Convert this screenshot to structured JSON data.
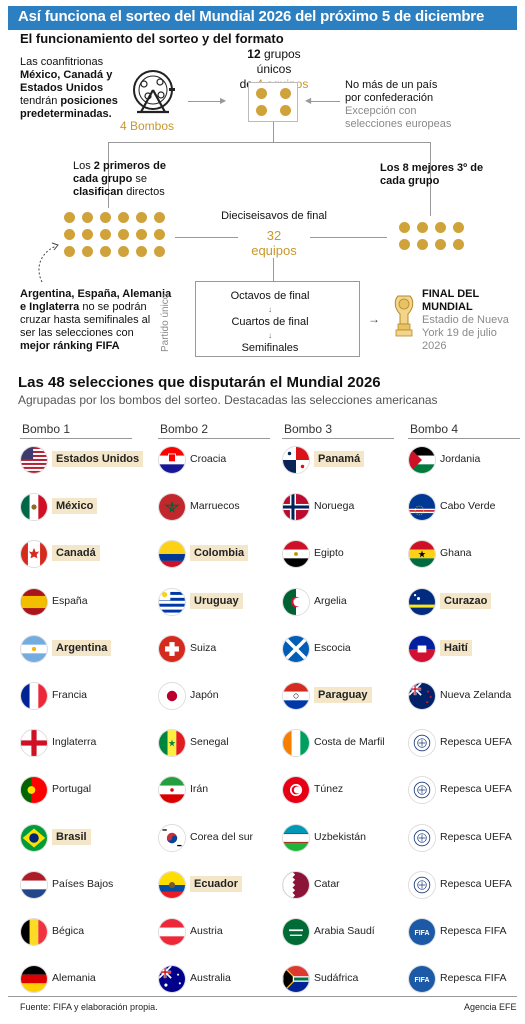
{
  "title": "Así funciona el sorteo del Mundial 2026 del próximo 5 de diciembre",
  "subtitle": "El funcionamiento del sorteo y del formato",
  "hosts": {
    "line1": "Las coanfitrionas",
    "line2": "México, Canadá y",
    "line3": "Estados Unidos",
    "line4": "tendrán posiciones",
    "line5": "predeterminadas."
  },
  "bombos_label": "4 Bombos",
  "groups": {
    "line1a": "12",
    "line1b": " grupos únicos",
    "line2a": "de ",
    "line2b": "4 equipos"
  },
  "confed": {
    "line1": "No más de un país",
    "line2": "por confederación",
    "line3": "Excepción con",
    "line4": "selecciones europeas"
  },
  "first_two": {
    "line1": "Los 2 primeros de",
    "line2": "cada grupo se",
    "line3": "clasifican directos"
  },
  "best_third": {
    "line1": "Los 8 mejores 3º de",
    "line2": "cada grupo"
  },
  "round32": {
    "label": "Dieciseisavos de final",
    "num": "32",
    "unit": "equipos"
  },
  "seeds": {
    "line1": "Argentina, España, Alemania",
    "line2": "e Inglaterra no se podrán",
    "line3": "cruzar hasta semifinales al",
    "line4": "ser las selecciones con",
    "line5": "mejor ránking FIFA"
  },
  "path_label": "Partido único",
  "rounds": [
    "Octavos de final",
    "Cuartos de final",
    "Semifinales"
  ],
  "final": {
    "line1": "FINAL DEL",
    "line2": "MUNDIAL",
    "line3": "Estadio de Nueva",
    "line4": "York 19 de julio",
    "line5": "2026"
  },
  "section_title": "Las 48 selecciones que disputarán el Mundial 2026",
  "section_sub": "Agrupadas por los bombos del sorteo. Destacadas las selecciones americanas",
  "pots": [
    {
      "name": "Bombo 1",
      "teams": [
        {
          "name": "Estados Unidos",
          "american": true,
          "flag": "usa"
        },
        {
          "name": "México",
          "american": true,
          "flag": "mexico"
        },
        {
          "name": "Canadá",
          "american": true,
          "flag": "canada"
        },
        {
          "name": "España",
          "american": false,
          "flag": "spain"
        },
        {
          "name": "Argentina",
          "american": true,
          "flag": "argentina"
        },
        {
          "name": "Francia",
          "american": false,
          "flag": "france"
        },
        {
          "name": "Inglaterra",
          "american": false,
          "flag": "england"
        },
        {
          "name": "Portugal",
          "american": false,
          "flag": "portugal"
        },
        {
          "name": "Brasil",
          "american": true,
          "flag": "brazil"
        },
        {
          "name": "Países Bajos",
          "american": false,
          "flag": "netherlands"
        },
        {
          "name": "Bégica",
          "american": false,
          "flag": "belgium"
        },
        {
          "name": "Alemania",
          "american": false,
          "flag": "germany"
        }
      ]
    },
    {
      "name": "Bombo 2",
      "teams": [
        {
          "name": "Croacia",
          "american": false,
          "flag": "croatia"
        },
        {
          "name": "Marruecos",
          "american": false,
          "flag": "morocco"
        },
        {
          "name": "Colombia",
          "american": true,
          "flag": "colombia"
        },
        {
          "name": "Uruguay",
          "american": true,
          "flag": "uruguay"
        },
        {
          "name": "Suiza",
          "american": false,
          "flag": "switzerland"
        },
        {
          "name": "Japón",
          "american": false,
          "flag": "japan"
        },
        {
          "name": "Senegal",
          "american": false,
          "flag": "senegal"
        },
        {
          "name": "Irán",
          "american": false,
          "flag": "iran"
        },
        {
          "name": "Corea del sur",
          "american": false,
          "flag": "korea"
        },
        {
          "name": "Ecuador",
          "american": true,
          "flag": "ecuador"
        },
        {
          "name": "Austria",
          "american": false,
          "flag": "austria"
        },
        {
          "name": "Australia",
          "american": false,
          "flag": "australia"
        }
      ]
    },
    {
      "name": "Bombo 3",
      "teams": [
        {
          "name": "Panamá",
          "american": true,
          "flag": "panama"
        },
        {
          "name": "Noruega",
          "american": false,
          "flag": "norway"
        },
        {
          "name": "Egipto",
          "american": false,
          "flag": "egypt"
        },
        {
          "name": "Argelia",
          "american": false,
          "flag": "algeria"
        },
        {
          "name": "Escocia",
          "american": false,
          "flag": "scotland"
        },
        {
          "name": "Paraguay",
          "american": true,
          "flag": "paraguay"
        },
        {
          "name": "Costa de Marfil",
          "american": false,
          "flag": "ivory"
        },
        {
          "name": "Túnez",
          "american": false,
          "flag": "tunisia"
        },
        {
          "name": "Uzbekistán",
          "american": false,
          "flag": "uzbekistan"
        },
        {
          "name": "Catar",
          "american": false,
          "flag": "qatar"
        },
        {
          "name": "Arabia Saudí",
          "american": false,
          "flag": "saudi"
        },
        {
          "name": "Sudáfrica",
          "american": false,
          "flag": "southafrica"
        }
      ]
    },
    {
      "name": "Bombo 4",
      "teams": [
        {
          "name": "Jordania",
          "american": false,
          "flag": "jordan"
        },
        {
          "name": "Cabo Verde",
          "american": false,
          "flag": "capeverde"
        },
        {
          "name": "Ghana",
          "american": false,
          "flag": "ghana"
        },
        {
          "name": "Curazao",
          "american": true,
          "flag": "curacao"
        },
        {
          "name": "Haití",
          "american": true,
          "flag": "haiti"
        },
        {
          "name": "Nueva Zelanda",
          "american": false,
          "flag": "newzealand"
        },
        {
          "name": "Repesca UEFA",
          "american": false,
          "flag": "uefa"
        },
        {
          "name": "Repesca UEFA",
          "american": false,
          "flag": "uefa"
        },
        {
          "name": "Repesca UEFA",
          "american": false,
          "flag": "uefa"
        },
        {
          "name": "Repesca UEFA",
          "american": false,
          "flag": "uefa"
        },
        {
          "name": "Repesca FIFA",
          "american": false,
          "flag": "fifa"
        },
        {
          "name": "Repesca FIFA",
          "american": false,
          "flag": "fifa"
        }
      ]
    }
  ],
  "source": "Fuente: FIFA y elaboración propia.",
  "agency": "Agencia EFE"
}
